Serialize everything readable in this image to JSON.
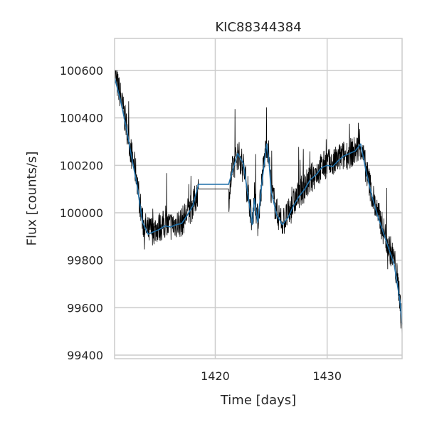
{
  "chart_data": {
    "type": "line",
    "title": "KIC88344384",
    "xlabel": "Time [days]",
    "ylabel": "Flux [counts/s]",
    "xlim": [
      1411.0,
      1436.7
    ],
    "ylim": [
      99385,
      100735
    ],
    "x_ticks": [
      1420,
      1430
    ],
    "y_ticks": [
      99400,
      99600,
      99800,
      100000,
      100200,
      100400,
      100600
    ],
    "grid": true,
    "series": [
      {
        "role": "raw flux",
        "color": "#000000",
        "x": [
          1411.0,
          1411.5,
          1412.0,
          1412.5,
          1413.0,
          1413.2,
          1413.5,
          1414.0,
          1414.5,
          1415.0,
          1415.5,
          1416.0,
          1416.5,
          1417.0,
          1417.5,
          1418.0,
          1418.5,
          1421.2,
          1421.5,
          1422.0,
          1422.5,
          1423.0,
          1423.3,
          1423.5,
          1423.8,
          1424.2,
          1424.6,
          1424.8,
          1425.0,
          1425.5,
          1426.0,
          1426.5,
          1427.0,
          1427.5,
          1428.0,
          1428.5,
          1429.0,
          1429.5,
          1430.0,
          1430.5,
          1431.0,
          1431.5,
          1432.0,
          1432.5,
          1433.0,
          1433.5,
          1434.0,
          1434.5,
          1435.0,
          1435.5,
          1436.0,
          1436.5,
          1436.7
        ],
        "y": [
          100580,
          100500,
          100380,
          100250,
          100150,
          100060,
          99960,
          99920,
          99930,
          99940,
          99950,
          99945,
          99955,
          99960,
          100000,
          100030,
          100100,
          100060,
          100170,
          100250,
          100200,
          100060,
          99960,
          100080,
          99960,
          100150,
          100300,
          100240,
          100100,
          100000,
          99960,
          99990,
          100040,
          100080,
          100110,
          100140,
          100170,
          100190,
          100210,
          100200,
          100230,
          100240,
          100250,
          100260,
          100280,
          100180,
          100080,
          100000,
          99930,
          99860,
          99800,
          99650,
          99480
        ]
      },
      {
        "role": "smoothed flux",
        "color": "#1f6fa8",
        "x": [
          1411.0,
          1411.5,
          1412.0,
          1412.5,
          1413.0,
          1413.5,
          1414.0,
          1414.5,
          1415.0,
          1415.5,
          1416.0,
          1416.5,
          1417.0,
          1417.5,
          1418.0,
          1418.5,
          1421.2,
          1421.5,
          1422.0,
          1422.5,
          1423.0,
          1423.3,
          1423.5,
          1423.8,
          1424.2,
          1424.6,
          1424.8,
          1425.0,
          1425.5,
          1426.0,
          1426.5,
          1427.0,
          1427.5,
          1428.0,
          1428.5,
          1429.0,
          1429.5,
          1430.0,
          1430.5,
          1431.0,
          1431.5,
          1432.0,
          1432.5,
          1433.0,
          1433.5,
          1434.0,
          1434.5,
          1435.0,
          1435.5,
          1436.0,
          1436.5,
          1436.7
        ],
        "y": [
          100570,
          100480,
          100370,
          100240,
          100120,
          99960,
          99910,
          99920,
          99930,
          99945,
          99940,
          99950,
          99955,
          99990,
          100030,
          100120,
          100120,
          100170,
          100250,
          100210,
          100050,
          99950,
          100060,
          99960,
          100140,
          100290,
          100220,
          100090,
          99990,
          99950,
          99980,
          100030,
          100070,
          100100,
          100140,
          100160,
          100190,
          100200,
          100195,
          100220,
          100240,
          100250,
          100260,
          100290,
          100170,
          100070,
          99990,
          99920,
          99850,
          99780,
          99630,
          99530
        ]
      }
    ]
  }
}
